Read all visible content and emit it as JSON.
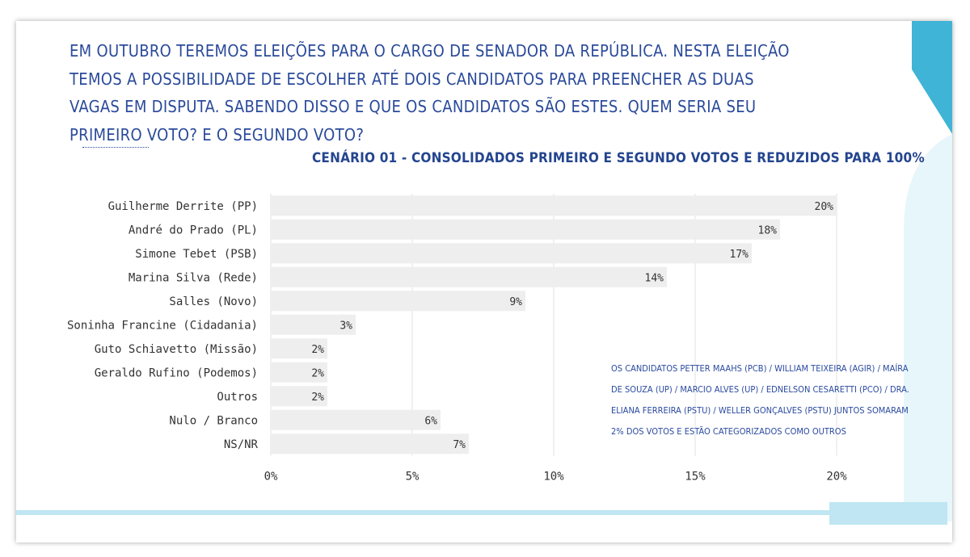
{
  "question": "EM OUTUBRO TEREMOS ELEIÇÕES PARA O CARGO DE SENADOR DA REPÚBLICA. NESTA ELEIÇÃO TEMOS A POSSIBILIDADE DE ESCOLHER ATÉ DOIS CANDIDATOS PARA PREENCHER AS DUAS VAGAS EM DISPUTA. SABENDO DISSO E QUE OS CANDIDATOS SÃO ESTES. QUEM SERIA SEU PRIMEIRO VOTO? E O SEGUNDO VOTO?",
  "note": "OS CANDIDATOS PETTER MAAHS (PCB) / WILLIAM TEIXEIRA (AGIR) / MAÍRA DE SOUZA (UP) / MARCIO ALVES (UP) / EDNELSON CESARETTI (PCO) / DRA. ELIANA FERREIRA (PSTU) / WELLER GONÇALVES (PSTU) JUNTOS SOMARAM 2% DOS VOTOS E ESTÃO CATEGORIZADOS COMO OUTROS",
  "colors": {
    "text": "#2a4a9a",
    "bar": "#eeeeee",
    "grid": "#e0e0e0",
    "accent": "#3fb4d6",
    "accent_light": "#bfe6f2"
  },
  "chart_data": {
    "type": "bar",
    "orientation": "horizontal",
    "title": "CENÁRIO 01 - CONSOLIDADOS PRIMEIRO E SEGUNDO VOTOS E REDUZIDOS PARA 100%",
    "categories": [
      "Guilherme Derrite (PP)",
      "André do Prado (PL)",
      "Simone Tebet (PSB)",
      "Marina Silva (Rede)",
      "Salles (Novo)",
      "Soninha Francine (Cidadania)",
      "Guto Schiavetto (Missão)",
      "Geraldo Rufino (Podemos)",
      "Outros",
      "Nulo / Branco",
      "NS/NR"
    ],
    "values": [
      20,
      18,
      17,
      14,
      9,
      3,
      2,
      2,
      2,
      6,
      7
    ],
    "value_labels": [
      "20%",
      "18%",
      "17%",
      "14%",
      "9%",
      "3%",
      "2%",
      "2%",
      "2%",
      "6%",
      "7%"
    ],
    "xlim": [
      0,
      20
    ],
    "xticks": [
      0,
      5,
      10,
      15,
      20
    ],
    "xtick_labels": [
      "0%",
      "5%",
      "10%",
      "15%",
      "20%"
    ],
    "grid": true
  }
}
